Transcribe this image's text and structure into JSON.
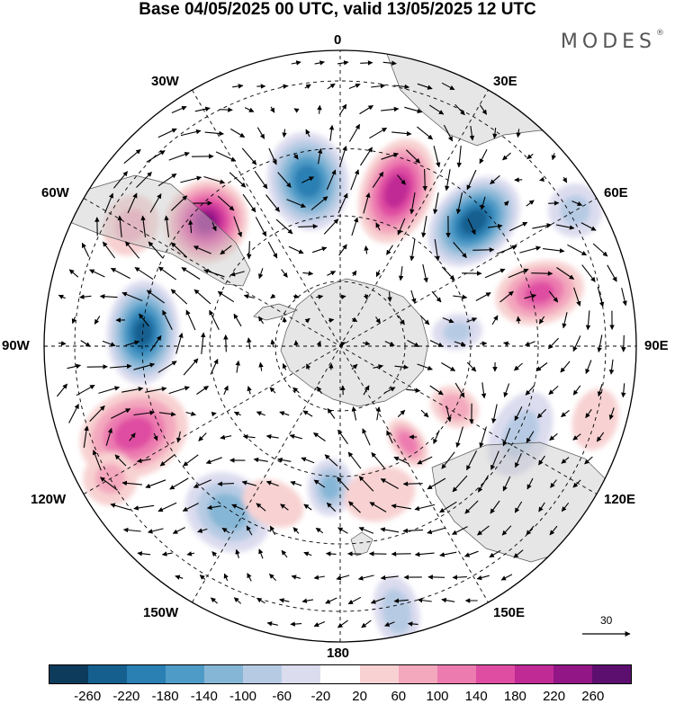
{
  "title": "Base 04/05/2025 00 UTC, valid 13/05/2025 12 UTC",
  "brand": "MODES",
  "brand_mark": "®",
  "longitude_labels": {
    "top": "0",
    "bottom": "180",
    "left": "90W",
    "right": "90E",
    "upper_left": "30W",
    "upper_right": "30E",
    "mid_left": "60W",
    "mid_right": "60E",
    "lower_left": "120W",
    "lower_right": "120E",
    "bottom_left": "150W",
    "bottom_right": "150E"
  },
  "vector_reference": "30",
  "colorbar": {
    "colors": [
      "#0c3b5c",
      "#155f8f",
      "#2a7fb3",
      "#4f9bc7",
      "#86b6d6",
      "#b6cbe3",
      "#dcdcef",
      "#ffffff",
      "#f8d2d2",
      "#f3a8bd",
      "#ec7bb0",
      "#df4da2",
      "#c02a95",
      "#921686",
      "#5c0f6e"
    ],
    "labels": [
      "-260",
      "-220",
      "-180",
      "-140",
      "-100",
      "-60",
      "-20",
      "20",
      "60",
      "100",
      "140",
      "180",
      "220",
      "260"
    ]
  },
  "anomalies": [
    {
      "name": "neg-30w",
      "lon": -11,
      "colat": 57,
      "val": -210,
      "r": [
        45,
        55
      ]
    },
    {
      "name": "pos-20e",
      "lon": 20,
      "colat": 56,
      "val": 210,
      "r": [
        40,
        60
      ]
    },
    {
      "name": "neg-45e",
      "lon": 47,
      "colat": 62,
      "val": -250,
      "r": [
        42,
        58
      ]
    },
    {
      "name": "pos-65w",
      "lon": -47,
      "colat": 62,
      "val": 240,
      "r": [
        48,
        45
      ]
    },
    {
      "name": "neg-95w",
      "lon": -86,
      "colat": 67,
      "val": -240,
      "r": [
        58,
        40
      ]
    },
    {
      "name": "pos-70e",
      "lon": 75,
      "colat": 70,
      "val": 150,
      "r": [
        35,
        50
      ]
    },
    {
      "name": "pos-105w",
      "lon": -113,
      "colat": 76,
      "val": 160,
      "r": [
        48,
        62
      ]
    },
    {
      "name": "neg-145w",
      "lon": -146,
      "colat": 68,
      "val": -120,
      "r": [
        50,
        42
      ]
    },
    {
      "name": "neg-175w",
      "lon": -176,
      "colat": 48,
      "val": -110,
      "r": [
        25,
        32
      ]
    },
    {
      "name": "pos-155w",
      "lon": -157,
      "colat": 58,
      "val": 40,
      "r": [
        35,
        25
      ]
    },
    {
      "name": "pos-170e",
      "lon": 165,
      "colat": 52,
      "val": 40,
      "r": [
        40,
        30
      ]
    },
    {
      "name": "pos-140e",
      "lon": 145,
      "colat": 40,
      "val": 120,
      "r": [
        18,
        30
      ]
    },
    {
      "name": "neg-115e",
      "lon": 116,
      "colat": 68,
      "val": -60,
      "r": [
        50,
        32
      ]
    },
    {
      "name": "neg-165e",
      "lon": 168,
      "colat": 92,
      "val": -80,
      "r": [
        25,
        40
      ]
    },
    {
      "name": "pos-115e",
      "lon": 118,
      "colat": 44,
      "val": 80,
      "r": [
        22,
        28
      ]
    },
    {
      "name": "neg-80e",
      "lon": 83,
      "colat": 40,
      "val": -60,
      "r": [
        20,
        28
      ]
    },
    {
      "name": "pos-110e",
      "lon": 106,
      "colat": 90,
      "val": 40,
      "r": [
        35,
        25
      ]
    },
    {
      "name": "pos-120w",
      "lon": -120,
      "colat": 90,
      "val": 60,
      "r": [
        30,
        30
      ]
    },
    {
      "name": "pos-75w",
      "lon": -60,
      "colat": 82,
      "val": 60,
      "r": [
        35,
        30
      ]
    },
    {
      "name": "neg-60e",
      "lon": 60,
      "colat": 92,
      "val": -60,
      "r": [
        30,
        30
      ]
    }
  ]
}
